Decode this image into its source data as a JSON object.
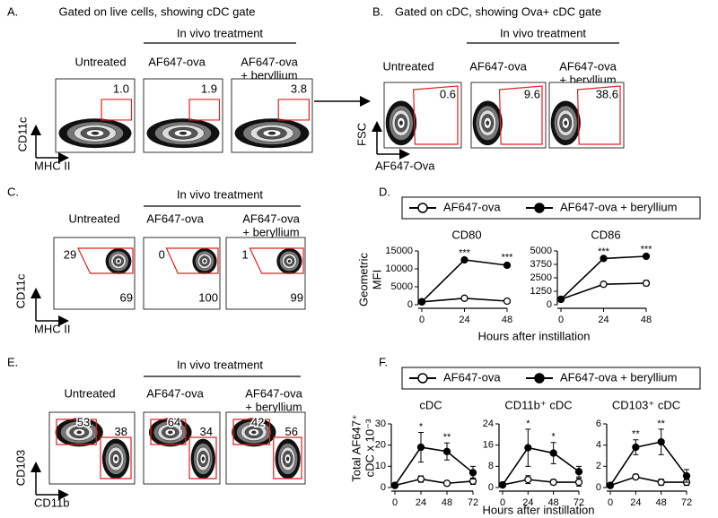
{
  "panels": [
    {
      "label": "A.",
      "title": "Gated on live cells, showing cDC gate",
      "subtitle": "In vivo treatment",
      "columns": [
        [
          "Untreated"
        ],
        [
          "AF647-ova"
        ],
        [
          "AF647-ova",
          "+ beryllium"
        ]
      ],
      "gates": [
        [
          "1.0"
        ],
        [
          "1.9"
        ],
        [
          "3.8"
        ]
      ],
      "y_axis": "CD11c",
      "x_axis": "MHC II"
    },
    {
      "label": "B.",
      "title": "Gated on cDC, showing Ova+ cDC gate",
      "subtitle": "In vivo treatment",
      "columns": [
        [
          "Untreated"
        ],
        [
          "AF647-ova"
        ],
        [
          "AF647-ova",
          "+ beryllium"
        ]
      ],
      "gates": [
        [
          "0.6"
        ],
        [
          "9.6"
        ],
        [
          "38.6"
        ]
      ],
      "y_axis": "FSC",
      "x_axis": "AF647-Ova"
    },
    {
      "label": "C.",
      "subtitle": "In vivo treatment",
      "columns": [
        [
          "Untreated"
        ],
        [
          "AF647-ova"
        ],
        [
          "AF647-ova",
          "+ beryllium"
        ]
      ],
      "gates": [
        [
          "29",
          "69"
        ],
        [
          "0",
          "100"
        ],
        [
          "1",
          "99"
        ]
      ],
      "y_axis": "CD11c",
      "x_axis": "MHC II"
    },
    {
      "label": "D.",
      "y_axis": [
        "Geometric",
        "MFI"
      ],
      "x_axis": "Hours after instillation"
    },
    {
      "label": "E.",
      "subtitle": "In vivo treatment",
      "columns": [
        [
          "Untreated"
        ],
        [
          "AF647-ova"
        ],
        [
          "AF647-ova",
          "+ beryllium"
        ]
      ],
      "gates": [
        [
          "53",
          "38"
        ],
        [
          "64",
          "34"
        ],
        [
          "42",
          "56"
        ]
      ],
      "y_axis": "CD103",
      "x_axis": "CD11b"
    },
    {
      "label": "F.",
      "y_axis": [
        "Total AF647⁺",
        "cDC x 10⁻³"
      ],
      "x_axis": "Hours after instillation"
    }
  ],
  "chart_data": [
    {
      "type": "line",
      "title": "CD80",
      "x": [
        0,
        24,
        48
      ],
      "xlim": [
        0,
        48
      ],
      "xticks": [
        0,
        24,
        48
      ],
      "ylim": [
        0,
        15000
      ],
      "yticks": [
        0,
        5000,
        10000,
        15000
      ],
      "series": [
        {
          "name": "AF647-ova",
          "color": "#000000",
          "marker_fill": "#ffffff",
          "values": [
            800,
            1800,
            1000
          ],
          "errors": [
            100,
            200,
            150
          ]
        },
        {
          "name": "AF647-ova + beryllium",
          "color": "#000000",
          "marker_fill": "#000000",
          "values": [
            800,
            12500,
            11000
          ],
          "errors": [
            100,
            300,
            600
          ]
        }
      ],
      "annotations": [
        {
          "x": 24,
          "text": "***"
        },
        {
          "x": 48,
          "text": "***"
        }
      ]
    },
    {
      "type": "line",
      "title": "CD86",
      "x": [
        0,
        24,
        48
      ],
      "xlim": [
        0,
        48
      ],
      "xticks": [
        0,
        24,
        48
      ],
      "ylim": [
        0,
        5000
      ],
      "yticks": [
        0,
        1250,
        2500,
        3750,
        5000
      ],
      "series": [
        {
          "color": "#000000",
          "marker_fill": "#ffffff",
          "values": [
            500,
            1900,
            2000
          ],
          "errors": [
            50,
            100,
            250
          ]
        },
        {
          "color": "#000000",
          "marker_fill": "#000000",
          "values": [
            500,
            4300,
            4500
          ],
          "errors": [
            50,
            100,
            100
          ]
        }
      ],
      "annotations": [
        {
          "x": 24,
          "text": "***"
        },
        {
          "x": 48,
          "text": "***"
        }
      ]
    },
    {
      "type": "line",
      "title": "cDC",
      "x": [
        0,
        24,
        48,
        72
      ],
      "xlim": [
        0,
        72
      ],
      "xticks": [
        0,
        24,
        48,
        72
      ],
      "ylim": [
        0,
        30
      ],
      "yticks": [
        0,
        10,
        20,
        30
      ],
      "series": [
        {
          "name": "AF647-ova",
          "color": "#000000",
          "marker_fill": "#ffffff",
          "values": [
            1,
            4,
            2,
            3
          ],
          "errors": [
            0.5,
            1.5,
            1,
            1.5
          ]
        },
        {
          "name": "AF647-ova + beryllium",
          "color": "#000000",
          "marker_fill": "#000000",
          "values": [
            1,
            19,
            17,
            7
          ],
          "errors": [
            0.5,
            7,
            4,
            3
          ]
        }
      ],
      "annotations": [
        {
          "x": 24,
          "text": "*"
        },
        {
          "x": 48,
          "text": "**"
        }
      ]
    },
    {
      "type": "line",
      "title": "CD11b⁺ cDC",
      "x": [
        0,
        24,
        48,
        72
      ],
      "xlim": [
        0,
        72
      ],
      "xticks": [
        0,
        24,
        48,
        72
      ],
      "ylim": [
        0,
        24
      ],
      "yticks": [
        0,
        8,
        16,
        24
      ],
      "series": [
        {
          "color": "#000000",
          "marker_fill": "#ffffff",
          "values": [
            1,
            3,
            2,
            2
          ],
          "errors": [
            0.5,
            1.5,
            1,
            1.5
          ]
        },
        {
          "color": "#000000",
          "marker_fill": "#000000",
          "values": [
            1,
            15,
            13,
            6
          ],
          "errors": [
            0.5,
            7,
            4,
            2
          ]
        }
      ],
      "annotations": [
        {
          "x": 24,
          "text": "*"
        },
        {
          "x": 48,
          "text": "*"
        }
      ]
    },
    {
      "type": "line",
      "title": "CD103⁺ cDC",
      "x": [
        0,
        24,
        48,
        72
      ],
      "xlim": [
        0,
        72
      ],
      "xticks": [
        0,
        24,
        48,
        72
      ],
      "ylim": [
        0,
        6
      ],
      "yticks": [
        0,
        2,
        4,
        6
      ],
      "series": [
        {
          "color": "#000000",
          "marker_fill": "#ffffff",
          "values": [
            0.2,
            1,
            0.5,
            0.5
          ],
          "errors": [
            0.1,
            0.2,
            0.3,
            0.3
          ]
        },
        {
          "color": "#000000",
          "marker_fill": "#000000",
          "values": [
            0.2,
            3.8,
            4.3,
            1.1
          ],
          "errors": [
            0.1,
            0.7,
            1.2,
            0.6
          ]
        }
      ],
      "annotations": [
        {
          "x": 24,
          "text": "**"
        },
        {
          "x": 48,
          "text": "**"
        }
      ]
    }
  ]
}
